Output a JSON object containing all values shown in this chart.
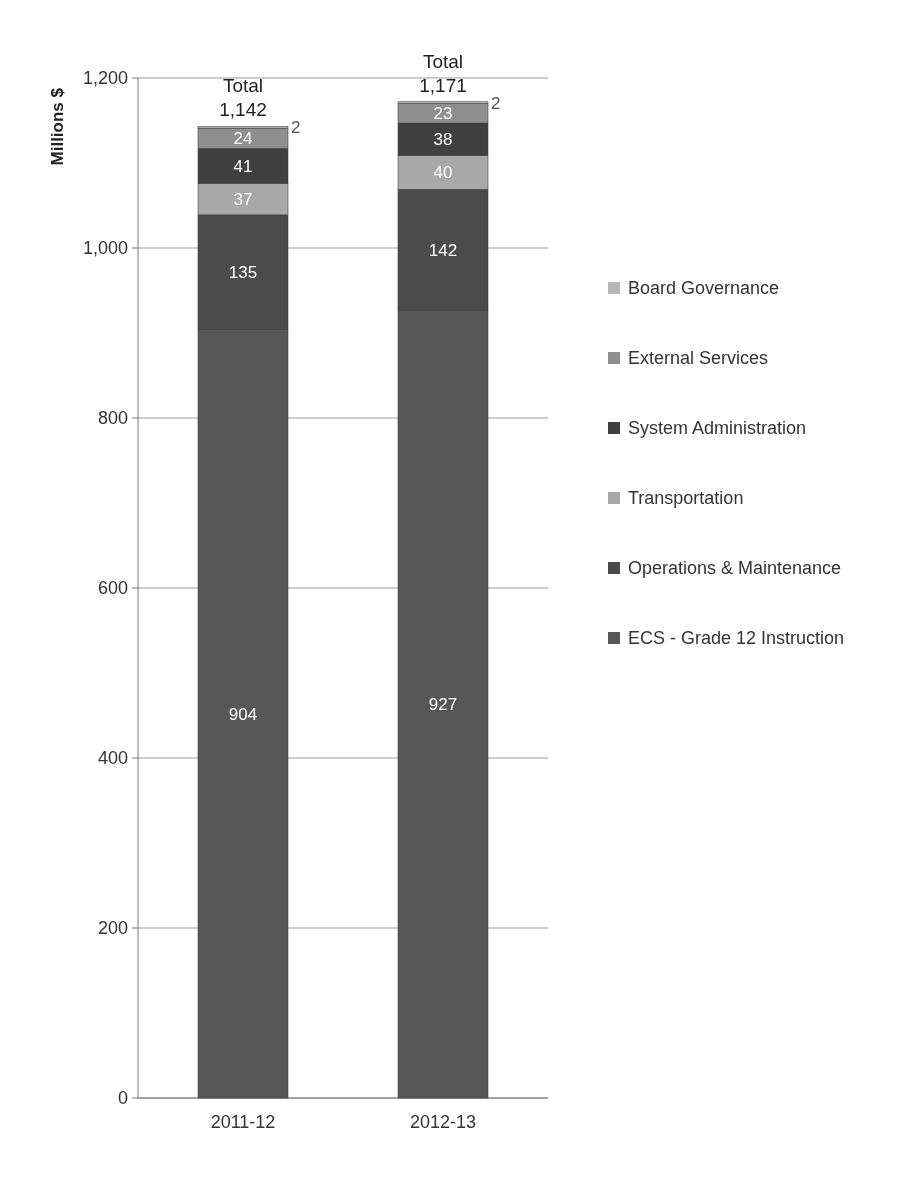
{
  "chart_data": {
    "type": "bar",
    "stacked": true,
    "ylabel": "Millions $",
    "categories": [
      "2011-12",
      "2012-13"
    ],
    "series": [
      {
        "name": "ECS - Grade 12 Instruction",
        "color": "#575757",
        "values": [
          904,
          927
        ]
      },
      {
        "name": "Operations & Maintenance",
        "color": "#4b4b4b",
        "values": [
          135,
          142
        ]
      },
      {
        "name": "Transportation",
        "color": "#a8a8a8",
        "values": [
          37,
          40
        ]
      },
      {
        "name": "System Administration",
        "color": "#404040",
        "values": [
          41,
          38
        ]
      },
      {
        "name": "External Services",
        "color": "#8f8f8f",
        "values": [
          24,
          23
        ]
      },
      {
        "name": "Board Governance",
        "color": "#b5b5b5",
        "values": [
          2,
          2
        ]
      }
    ],
    "totals": [
      "Total\n1,142",
      "Total\n1,171"
    ],
    "data_labels": true,
    "ylim": [
      0,
      1200
    ],
    "yticks": [
      0,
      200,
      400,
      600,
      800,
      {
        "value": 1000,
        "label": "1,000"
      },
      {
        "value": 1200,
        "label": "1,200"
      }
    ],
    "grid": "y",
    "legend": "right"
  }
}
